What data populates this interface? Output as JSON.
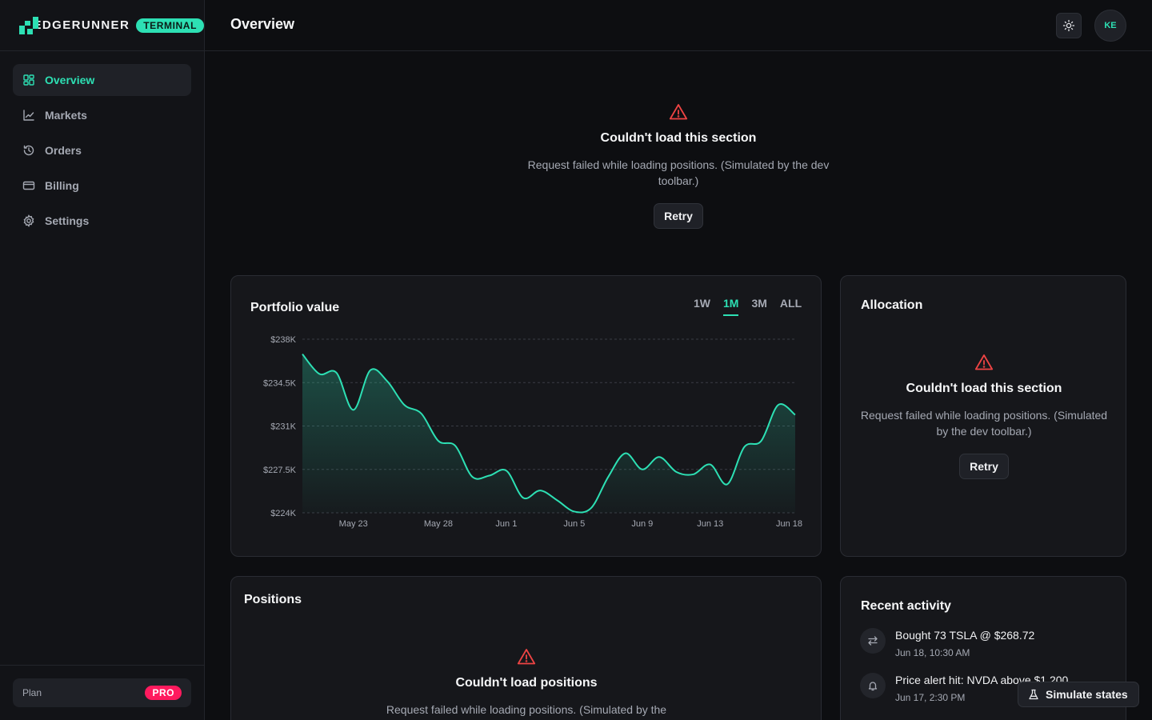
{
  "brand": {
    "name": "EDGERUNNER",
    "badge": "TERMINAL"
  },
  "nav": [
    {
      "label": "Overview",
      "icon": "layout-grid-icon",
      "active": true
    },
    {
      "label": "Markets",
      "icon": "line-chart-icon"
    },
    {
      "label": "Orders",
      "icon": "history-icon"
    },
    {
      "label": "Billing",
      "icon": "credit-card-icon"
    },
    {
      "label": "Settings",
      "icon": "gear-icon"
    }
  ],
  "plan": {
    "label": "Plan",
    "badge": "PRO"
  },
  "header": {
    "title": "Overview",
    "avatar": "KE"
  },
  "top_error": {
    "title": "Couldn't load this section",
    "message": "Request failed while loading positions. (Simulated by the dev toolbar.)",
    "retry": "Retry"
  },
  "portfolio": {
    "title": "Portfolio value",
    "ranges": [
      "1W",
      "1M",
      "3M",
      "ALL"
    ],
    "active_range": "1M"
  },
  "chart_data": {
    "type": "area",
    "title": "Portfolio value",
    "x_ticks": [
      "May 23",
      "May 28",
      "Jun 1",
      "Jun 5",
      "Jun 9",
      "Jun 13",
      "Jun 18"
    ],
    "y_ticks": [
      "$238K",
      "$234.5K",
      "$231K",
      "$227.5K",
      "$224K"
    ],
    "ylim": [
      224000,
      238000
    ],
    "x": [
      "May 20",
      "May 21",
      "May 22",
      "May 23",
      "May 24",
      "May 25",
      "May 26",
      "May 27",
      "May 28",
      "May 29",
      "May 30",
      "May 31",
      "Jun 1",
      "Jun 2",
      "Jun 3",
      "Jun 4",
      "Jun 5",
      "Jun 6",
      "Jun 7",
      "Jun 8",
      "Jun 9",
      "Jun 10",
      "Jun 11",
      "Jun 12",
      "Jun 13",
      "Jun 14",
      "Jun 15",
      "Jun 16",
      "Jun 17",
      "Jun 18"
    ],
    "values": [
      236800,
      235200,
      235300,
      232300,
      235500,
      234600,
      232700,
      232000,
      229800,
      229400,
      226900,
      227000,
      227400,
      225200,
      225800,
      225000,
      224100,
      224400,
      226900,
      228800,
      227500,
      228500,
      227300,
      227100,
      227900,
      226300,
      229300,
      229800,
      232700,
      231900
    ],
    "grid": true,
    "color": "#2de0b4"
  },
  "allocation": {
    "title": "Allocation",
    "error_title": "Couldn't load this section",
    "error_message": "Request failed while loading positions. (Simulated by the dev toolbar.)",
    "retry": "Retry"
  },
  "positions": {
    "title": "Positions",
    "error_title": "Couldn't load positions",
    "error_message": "Request failed while loading positions. (Simulated by the"
  },
  "activity": {
    "title": "Recent activity",
    "items": [
      {
        "title": "Bought 73 TSLA @ $268.72",
        "time": "Jun 18, 10:30 AM",
        "icon": "swap-arrows-icon"
      },
      {
        "title": "Price alert hit: NVDA above $1,200",
        "time": "Jun 17, 2:30 PM",
        "icon": "bell-icon"
      }
    ]
  },
  "simulate": {
    "label": "Simulate states"
  },
  "colors": {
    "accent": "#2de0b4",
    "danger": "#ef4444",
    "pro": "#ff1a5e"
  }
}
